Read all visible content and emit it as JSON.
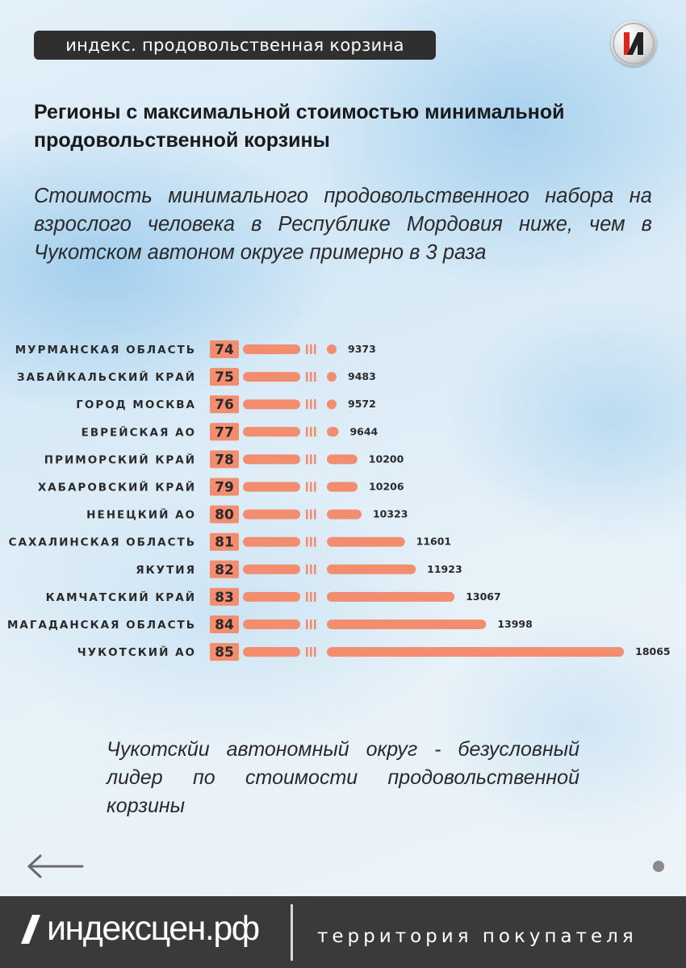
{
  "header": {
    "topic_label": "индекс. продовольственная корзина"
  },
  "headline": "Регионы с максимальной стоимостью минимальной продовольственной корзины",
  "subtitle": "Стоимость минимального продовольственного набора на взрослого человека в Республике Мордовия ниже, чем в Чукотском автоном округе примерно в 3 раза",
  "note": "Чукотскйи автономный округ - безусловный лидер по стоимости продовольственной корзины",
  "footer": {
    "brand": "индексцен.рф",
    "tagline": "территория покупателя"
  },
  "colors": {
    "bar": "#f28d70",
    "rank_box": "#f28d70",
    "footer_bg": "#3a3a3a"
  },
  "icons": {
    "back": "arrow-left-icon",
    "logo": "index-logo-icon",
    "page": "page-dot-icon"
  },
  "chart_data": {
    "type": "bar",
    "orientation": "horizontal",
    "axis_break": true,
    "title": "Регионы с максимальной стоимостью минимальной продовольственной корзины",
    "categories": [
      "МУРМАНСКАЯ ОБЛАСТЬ",
      "ЗАБАЙКАЛЬСКИЙ КРАЙ",
      "ГОРОД МОСКВА",
      "ЕВРЕЙСКАЯ АО",
      "ПРИМОРСКИЙ КРАЙ",
      "ХАБАРОВСКИЙ КРАЙ",
      "НЕНЕЦКИЙ АО",
      "САХАЛИНСКАЯ ОБЛАСТЬ",
      "ЯКУТИЯ",
      "КАМЧАТСКИЙ КРАЙ",
      "МАГАДАНСКАЯ ОБЛАСТЬ",
      "ЧУКОТСКИЙ АО"
    ],
    "ranks": [
      74,
      75,
      76,
      77,
      78,
      79,
      80,
      81,
      82,
      83,
      84,
      85
    ],
    "values": [
      9373,
      9483,
      9572,
      9644,
      10200,
      10206,
      10323,
      11601,
      11923,
      13067,
      13998,
      18065
    ],
    "value_labels": [
      "9373",
      "9483",
      "9572",
      "9644",
      "10200",
      "10206",
      "10323",
      "11601",
      "11923",
      "13067",
      "13998",
      "18065"
    ],
    "break_range": [
      0,
      9300
    ],
    "xlim": [
      9300,
      18065
    ]
  }
}
